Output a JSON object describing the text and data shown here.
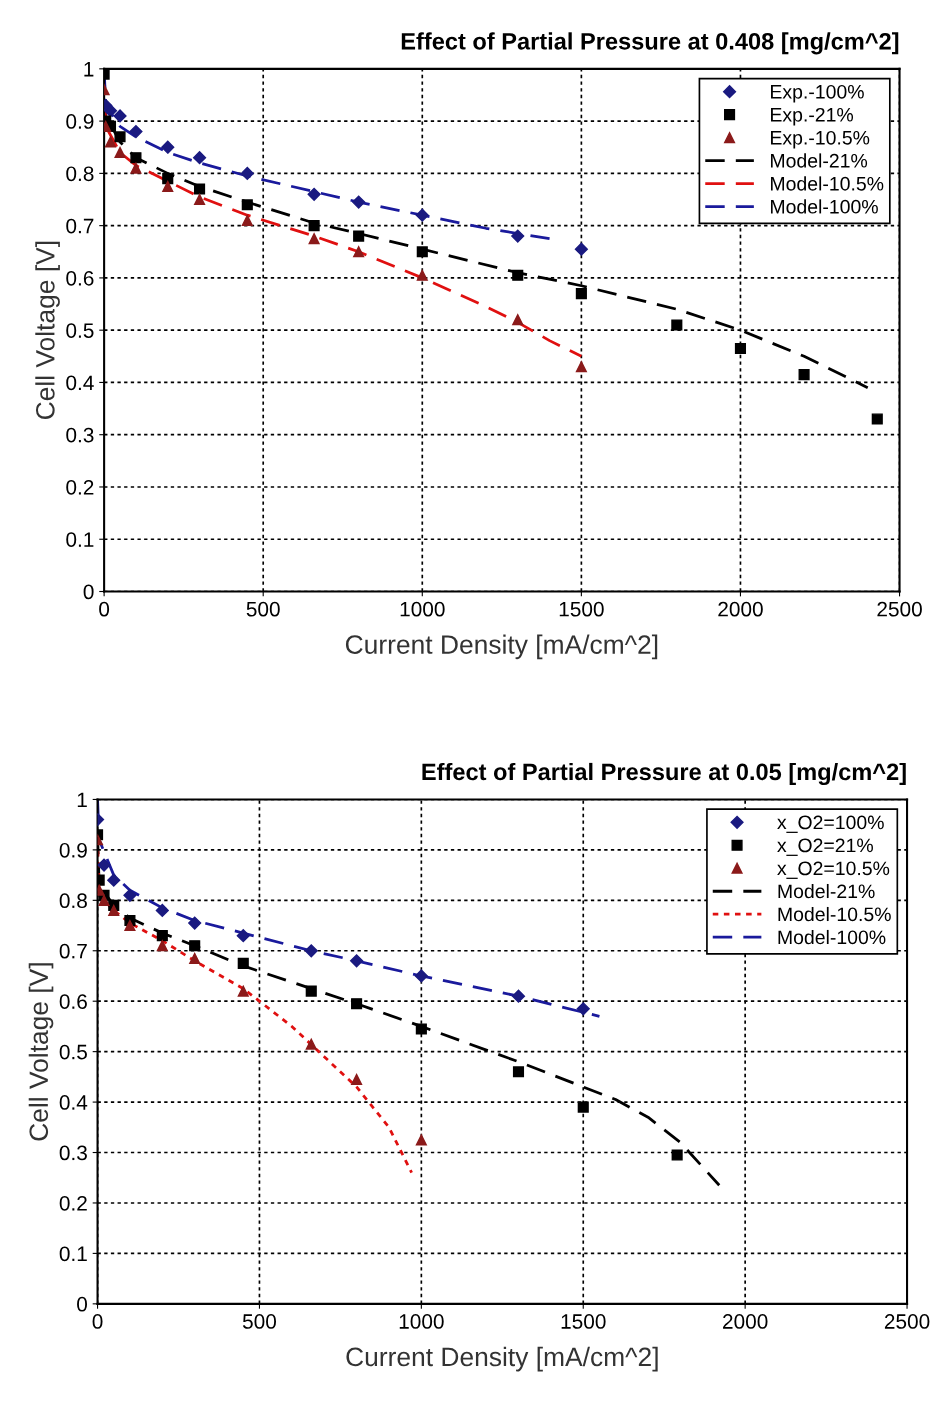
{
  "chart_data": [
    {
      "type": "line",
      "title": "Effect of Partial Pressure at 0.408 [mg/cm^2]",
      "xlabel": "Current Density [mA/cm^2]",
      "ylabel": "Cell Voltage [V]",
      "xlim": [
        0,
        2500
      ],
      "ylim": [
        0,
        1
      ],
      "xticks": [
        0,
        500,
        1000,
        1500,
        2000,
        2500
      ],
      "yticks": [
        0,
        0.1,
        0.2,
        0.3,
        0.4,
        0.5,
        0.6,
        0.7,
        0.8,
        0.9,
        1
      ],
      "grid": true,
      "legend": "top right",
      "series": [
        {
          "name": "Exp.-100%",
          "type": "scatter",
          "marker": "diamond",
          "color": "#1a1a80",
          "x": [
            5,
            20,
            50,
            100,
            200,
            300,
            450,
            660,
            800,
            1000,
            1300,
            1500
          ],
          "values": [
            0.93,
            0.92,
            0.91,
            0.88,
            0.85,
            0.83,
            0.8,
            0.76,
            0.745,
            0.72,
            0.68,
            0.655
          ]
        },
        {
          "name": "Exp.-21%",
          "type": "scatter",
          "marker": "square",
          "color": "#000000",
          "x": [
            0,
            5,
            20,
            50,
            100,
            200,
            300,
            450,
            660,
            800,
            1000,
            1300,
            1500,
            1800,
            2000,
            2200,
            2430
          ],
          "values": [
            0.99,
            0.9,
            0.89,
            0.87,
            0.83,
            0.79,
            0.77,
            0.74,
            0.7,
            0.68,
            0.65,
            0.605,
            0.57,
            0.51,
            0.465,
            0.415,
            0.33
          ]
        },
        {
          "name": "Exp.-10.5%",
          "type": "scatter",
          "marker": "triangle",
          "color": "#8b1a1a",
          "x": [
            0,
            5,
            20,
            50,
            100,
            200,
            300,
            450,
            660,
            800,
            1000,
            1300,
            1500
          ],
          "values": [
            0.96,
            0.89,
            0.86,
            0.84,
            0.81,
            0.775,
            0.75,
            0.71,
            0.675,
            0.65,
            0.605,
            0.52,
            0.43
          ]
        },
        {
          "name": "Model-21%",
          "type": "line",
          "line_style": "dashed",
          "color": "#000000",
          "x": [
            0,
            5,
            50,
            100,
            200,
            300,
            450,
            660,
            800,
            1000,
            1300,
            1500,
            1800,
            2000,
            2200,
            2400
          ],
          "values": [
            1.0,
            0.91,
            0.86,
            0.83,
            0.8,
            0.775,
            0.745,
            0.705,
            0.685,
            0.655,
            0.61,
            0.585,
            0.54,
            0.5,
            0.45,
            0.39
          ]
        },
        {
          "name": "Model-10.5%",
          "type": "line",
          "line_style": "dashed",
          "color": "#e01010",
          "x": [
            0,
            5,
            50,
            100,
            200,
            300,
            450,
            660,
            800,
            1000,
            1200,
            1300,
            1400,
            1500
          ],
          "values": [
            1.0,
            0.89,
            0.84,
            0.815,
            0.785,
            0.755,
            0.72,
            0.68,
            0.65,
            0.6,
            0.545,
            0.515,
            0.48,
            0.45
          ]
        },
        {
          "name": "Model-100%",
          "type": "line",
          "line_style": "dashed",
          "color": "#1a1a9c",
          "x": [
            0,
            5,
            50,
            100,
            200,
            300,
            450,
            660,
            800,
            1000,
            1200,
            1400
          ],
          "values": [
            1.0,
            0.93,
            0.89,
            0.87,
            0.84,
            0.82,
            0.795,
            0.765,
            0.745,
            0.72,
            0.695,
            0.675
          ]
        }
      ]
    },
    {
      "type": "line",
      "title": "Effect of Partial Pressure at 0.05 [mg/cm^2]",
      "xlabel": "Current Density [mA/cm^2]",
      "ylabel": "Cell Voltage [V]",
      "xlim": [
        0,
        2500
      ],
      "ylim": [
        0,
        1
      ],
      "xticks": [
        0,
        500,
        1000,
        1500,
        2000,
        2500
      ],
      "yticks": [
        0,
        0.1,
        0.2,
        0.3,
        0.4,
        0.5,
        0.6,
        0.7,
        0.8,
        0.9,
        1
      ],
      "grid": true,
      "legend": "top right",
      "series": [
        {
          "name": "x_O2=100%",
          "type": "scatter",
          "marker": "diamond",
          "color": "#1a1a80",
          "x": [
            0,
            5,
            20,
            50,
            100,
            200,
            300,
            450,
            660,
            800,
            1000,
            1300,
            1500
          ],
          "values": [
            0.96,
            null,
            0.87,
            0.84,
            0.81,
            0.78,
            0.755,
            0.73,
            0.7,
            0.68,
            0.65,
            0.61,
            0.585
          ]
        },
        {
          "name": "x_O2=21%",
          "type": "scatter",
          "marker": "square",
          "color": "#000000",
          "x": [
            0,
            5,
            20,
            50,
            100,
            200,
            300,
            450,
            660,
            800,
            1000,
            1300,
            1500,
            1790
          ],
          "values": [
            0.93,
            0.84,
            0.81,
            0.79,
            0.76,
            0.73,
            0.71,
            0.675,
            0.62,
            0.595,
            0.545,
            0.46,
            0.39,
            0.295
          ]
        },
        {
          "name": "x_O2=10.5%",
          "type": "scatter",
          "marker": "triangle",
          "color": "#8b1a1a",
          "x": [
            0,
            5,
            20,
            50,
            100,
            200,
            300,
            450,
            660,
            800,
            1000
          ],
          "values": [
            0.92,
            0.82,
            0.8,
            0.78,
            0.75,
            0.71,
            0.685,
            0.62,
            0.515,
            0.445,
            0.325
          ]
        },
        {
          "name": "Model-21%",
          "type": "line",
          "line_style": "dashed",
          "color": "#000000",
          "x": [
            0,
            5,
            50,
            100,
            200,
            300,
            450,
            660,
            800,
            1000,
            1300,
            1500,
            1600,
            1700,
            1800,
            1920
          ],
          "values": [
            0.93,
            0.83,
            0.79,
            0.765,
            0.735,
            0.71,
            0.67,
            0.625,
            0.595,
            0.55,
            0.48,
            0.43,
            0.405,
            0.37,
            0.32,
            0.235
          ]
        },
        {
          "name": "Model-10.5%",
          "type": "line",
          "line_style": "dotted",
          "color": "#e01010",
          "x": [
            0,
            5,
            50,
            100,
            200,
            300,
            450,
            500,
            600,
            700,
            800,
            900,
            970
          ],
          "values": [
            0.92,
            0.81,
            0.78,
            0.755,
            0.72,
            0.68,
            0.625,
            0.6,
            0.55,
            0.49,
            0.43,
            0.35,
            0.26
          ]
        },
        {
          "name": "Model-100%",
          "type": "line",
          "line_style": "dashed",
          "color": "#1a1a9c",
          "x": [
            0,
            5,
            50,
            100,
            200,
            300,
            450,
            660,
            800,
            1000,
            1300,
            1550
          ],
          "values": [
            1.0,
            0.92,
            0.85,
            0.82,
            0.785,
            0.76,
            0.735,
            0.7,
            0.68,
            0.65,
            0.61,
            0.57
          ]
        }
      ]
    }
  ]
}
